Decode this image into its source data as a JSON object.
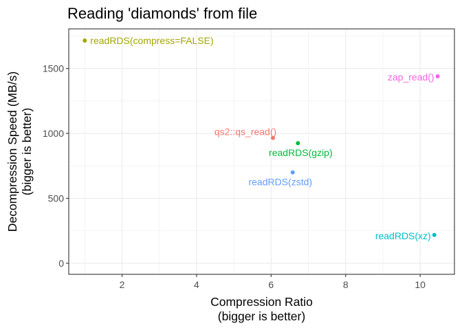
{
  "chart_data": {
    "type": "scatter",
    "title": "Reading 'diamonds' from file",
    "xlabel": [
      "Compression Ratio",
      "(bigger is better)"
    ],
    "ylabel": [
      "Decompression Speed (MB/s)",
      "(bigger is better)"
    ],
    "xlim": [
      0.57,
      10.92
    ],
    "ylim": [
      -85,
      1805
    ],
    "xticks": [
      2,
      4,
      6,
      8,
      10
    ],
    "xtick_labels": [
      "2",
      "4",
      "6",
      "8",
      "10"
    ],
    "yticks": [
      0,
      500,
      1000,
      1500
    ],
    "ytick_labels": [
      "0",
      "500",
      "1000",
      "1500"
    ],
    "grid": true,
    "legend": "none",
    "points": [
      {
        "label": "readRDS(compress=FALSE)",
        "x": 1.0,
        "y": 1715,
        "color": "#A3A500",
        "label_side": "right"
      },
      {
        "label": "zap_read()",
        "x": 10.47,
        "y": 1440,
        "color": "#F564E3",
        "label_side": "left"
      },
      {
        "label": "qs2::qs_read()",
        "x": 6.05,
        "y": 965,
        "color": "#F8766D",
        "label_side": "above-left"
      },
      {
        "label": "readRDS(gzip)",
        "x": 6.72,
        "y": 925,
        "color": "#00BA38",
        "label_side": "below"
      },
      {
        "label": "readRDS(zstd)",
        "x": 6.58,
        "y": 700,
        "color": "#619CFF",
        "label_side": "below-left"
      },
      {
        "label": "readRDS(xz)",
        "x": 10.38,
        "y": 218,
        "color": "#00BFC4",
        "label_side": "left"
      }
    ]
  }
}
